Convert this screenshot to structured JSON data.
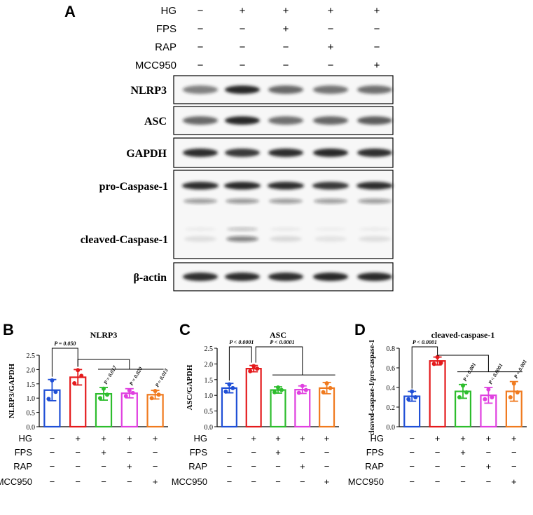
{
  "panel_a": {
    "letter": "A",
    "conditions": [
      {
        "name": "HG",
        "signs": [
          "−",
          "+",
          "+",
          "+",
          "+"
        ]
      },
      {
        "name": "FPS",
        "signs": [
          "−",
          "−",
          "+",
          "−",
          "−"
        ]
      },
      {
        "name": "RAP",
        "signs": [
          "−",
          "−",
          "−",
          "+",
          "−"
        ]
      },
      {
        "name": "MCC950",
        "signs": [
          "−",
          "−",
          "−",
          "−",
          "+"
        ]
      }
    ],
    "blots": [
      {
        "label": "NLRP3",
        "intensity": [
          0.55,
          0.95,
          0.65,
          0.6,
          0.62
        ]
      },
      {
        "label": "ASC",
        "intensity": [
          0.65,
          0.95,
          0.62,
          0.66,
          0.7
        ]
      },
      {
        "label": "GAPDH",
        "intensity": [
          0.9,
          0.88,
          0.9,
          0.95,
          0.92
        ]
      },
      {
        "label_pro": "pro-Caspase-1",
        "label_cleaved": "cleaved-Caspase-1",
        "pro_intensity": [
          0.9,
          0.95,
          0.9,
          0.88,
          0.9
        ],
        "cleaved_intensity": [
          0.1,
          0.5,
          0.12,
          0.08,
          0.1
        ]
      },
      {
        "label": "β-actin",
        "intensity": [
          0.92,
          0.9,
          0.92,
          0.95,
          0.94
        ]
      }
    ]
  },
  "chart_data": [
    {
      "panel": "B",
      "type": "bar",
      "title": "NLRP3",
      "ylabel": "NLRP3/GAPDH",
      "ylim": [
        0,
        2.5
      ],
      "yticks": [
        "0.0",
        "0.5",
        "1.0",
        "1.5",
        "2.0",
        "2.5"
      ],
      "values": [
        1.28,
        1.73,
        1.15,
        1.17,
        1.12
      ],
      "errors": [
        0.37,
        0.27,
        0.22,
        0.16,
        0.15
      ],
      "points": [
        [
          1.62,
          1.22,
          0.97
        ],
        [
          1.98,
          1.78,
          1.52
        ],
        [
          1.33,
          1.12,
          1.0
        ],
        [
          1.27,
          1.18,
          1.07
        ],
        [
          1.25,
          1.12,
          1.0
        ]
      ],
      "colors": [
        "#1f4fd6",
        "#e41a1c",
        "#2dbd2d",
        "#e040e0",
        "#f07a1e"
      ],
      "p_top": "P = 0.050",
      "p_values": [
        "P = 0.017",
        "P = 0.020",
        "P = 0.013"
      ]
    },
    {
      "panel": "C",
      "type": "bar",
      "title": "ASC",
      "ylabel": "ASC/GAPDH",
      "ylim": [
        0,
        2.5
      ],
      "yticks": [
        "0.0",
        "0.5",
        "1.0",
        "1.5",
        "2.0",
        "2.5"
      ],
      "values": [
        1.23,
        1.85,
        1.17,
        1.18,
        1.23
      ],
      "errors": [
        0.15,
        0.1,
        0.1,
        0.12,
        0.18
      ],
      "points": [
        [
          1.35,
          1.23,
          1.12
        ],
        [
          1.93,
          1.85,
          1.77
        ],
        [
          1.25,
          1.17,
          1.1
        ],
        [
          1.3,
          1.17,
          1.08
        ],
        [
          1.38,
          1.23,
          1.1
        ]
      ],
      "colors": [
        "#1f4fd6",
        "#e41a1c",
        "#2dbd2d",
        "#e040e0",
        "#f07a1e"
      ],
      "p_top_left": "P < 0.0001",
      "p_top_right": "P < 0.0001"
    },
    {
      "panel": "D",
      "type": "bar",
      "title": "cleaved-caspase-1",
      "ylabel": "cleaved-caspase-1/pro-caspase-1",
      "ylim": [
        0,
        0.8
      ],
      "yticks": [
        "0.0",
        "0.2",
        "0.4",
        "0.6",
        "0.8"
      ],
      "values": [
        0.31,
        0.67,
        0.36,
        0.32,
        0.36
      ],
      "errors": [
        0.05,
        0.04,
        0.07,
        0.08,
        0.1
      ],
      "points": [
        [
          0.36,
          0.3,
          0.28
        ],
        [
          0.71,
          0.65,
          0.64
        ],
        [
          0.42,
          0.35,
          0.3
        ],
        [
          0.38,
          0.3,
          0.28
        ],
        [
          0.44,
          0.35,
          0.3
        ]
      ],
      "colors": [
        "#1f4fd6",
        "#e41a1c",
        "#2dbd2d",
        "#e040e0",
        "#f07a1e"
      ],
      "p_top": "P < 0.0001",
      "p_values": [
        "P = 0.001",
        "P < 0.0001",
        "P = 0.001"
      ]
    }
  ],
  "condition_table": {
    "rows": [
      {
        "name": "HG",
        "signs": [
          "−",
          "+",
          "+",
          "+",
          "+"
        ]
      },
      {
        "name": "FPS",
        "signs": [
          "−",
          "−",
          "+",
          "−",
          "−"
        ]
      },
      {
        "name": "RAP",
        "signs": [
          "−",
          "−",
          "−",
          "+",
          "−"
        ]
      },
      {
        "name": "MCC950",
        "signs": [
          "−",
          "−",
          "−",
          "−",
          "+"
        ]
      }
    ]
  }
}
